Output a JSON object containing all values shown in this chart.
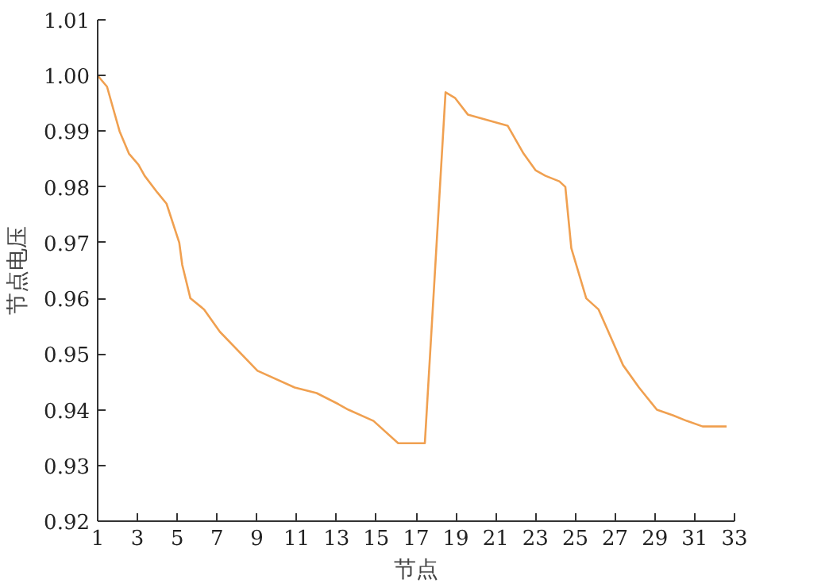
{
  "chart_data": {
    "type": "line",
    "xlabel": "节点",
    "ylabel": "节点电压",
    "xlim": [
      1,
      33
    ],
    "xticks": [
      1,
      3,
      5,
      7,
      9,
      11,
      13,
      15,
      17,
      19,
      21,
      23,
      25,
      27,
      29,
      31,
      33
    ],
    "ylim": [
      0.92,
      1.01
    ],
    "yticks": [
      {
        "value": 0.92,
        "label": "0.92"
      },
      {
        "value": 0.93,
        "label": "0.93"
      },
      {
        "value": 0.94,
        "label": "0.94"
      },
      {
        "value": 0.95,
        "label": "0.95"
      },
      {
        "value": 0.96,
        "label": "0.96"
      },
      {
        "value": 0.97,
        "label": "0.97"
      },
      {
        "value": 0.98,
        "label": "0.98"
      },
      {
        "value": 0.99,
        "label": "0.99"
      },
      {
        "value": 1.0,
        "label": "1.00"
      },
      {
        "value": 1.01,
        "label": "1.01"
      }
    ],
    "grid": false,
    "line_style": "solid",
    "marker": "none",
    "series": [
      {
        "color": "#f0a050",
        "x": [
          1,
          1.47,
          2.1,
          2.57,
          3.05,
          3.36,
          4.0,
          4.46,
          5.1,
          5.25,
          5.66,
          6.35,
          7.14,
          9.03,
          10.9,
          12.0,
          13.1,
          13.6,
          14.86,
          16.1,
          16.9,
          17.44,
          18.48,
          18.95,
          19.6,
          21.6,
          22.4,
          23.0,
          23.5,
          24.2,
          24.5,
          24.8,
          25.55,
          26.17,
          27.4,
          28.2,
          29.1,
          29.9,
          30.6,
          31.4,
          32.6
        ],
        "values": [
          1.0,
          0.998,
          0.99,
          0.986,
          0.984,
          0.982,
          0.979,
          0.977,
          0.97,
          0.966,
          0.96,
          0.958,
          0.954,
          0.947,
          0.944,
          0.943,
          0.941,
          0.94,
          0.938,
          0.934,
          0.934,
          0.934,
          0.997,
          0.996,
          0.993,
          0.991,
          0.986,
          0.983,
          0.982,
          0.981,
          0.98,
          0.969,
          0.96,
          0.958,
          0.948,
          0.944,
          0.94,
          0.939,
          0.938,
          0.937,
          0.937
        ]
      }
    ]
  }
}
